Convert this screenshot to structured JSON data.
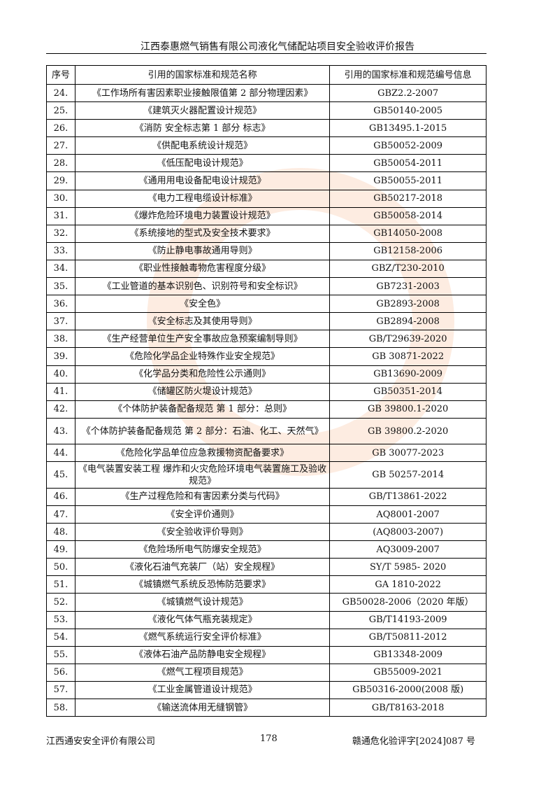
{
  "header": {
    "title": "江西泰惠燃气销售有限公司液化气储配站项目安全验收评价报告"
  },
  "watermark": {
    "text": "江西通安安全评价有限公司",
    "color": "#f5965a"
  },
  "table": {
    "columns": [
      "序号",
      "引用的国家标准和规范名称",
      "引用的国家标准和规范编号信息"
    ],
    "rows": [
      {
        "no": "24.",
        "name": "《工作场所有害因素职业接触限值第 2 部分物理因素》",
        "code": "GBZ2.2-2007"
      },
      {
        "no": "25.",
        "name": "《建筑灭火器配置设计规范》",
        "code": "GB50140-2005"
      },
      {
        "no": "26.",
        "name": "《消防 安全标志第 1 部分  标志》",
        "code": "GB13495.1-2015"
      },
      {
        "no": "27.",
        "name": "《供配电系统设计规范》",
        "code": "GB50052-2009"
      },
      {
        "no": "28.",
        "name": "《低压配电设计规范》",
        "code": "GB50054-2011"
      },
      {
        "no": "29.",
        "name": "《通用用电设备配电设计规范》",
        "code": "GB50055-2011"
      },
      {
        "no": "30.",
        "name": "《电力工程电缆设计标准》",
        "code": "GB50217-2018"
      },
      {
        "no": "31.",
        "name": "《爆炸危险环境电力装置设计规范》",
        "code": "GB50058-2014"
      },
      {
        "no": "32.",
        "name": "《系统接地的型式及安全技术要求》",
        "code": "GB14050-2008"
      },
      {
        "no": "33.",
        "name": "《防止静电事故通用导则》",
        "code": "GB12158-2006"
      },
      {
        "no": "34.",
        "name": "《职业性接触毒物危害程度分级》",
        "code": "GBZ/T230-2010"
      },
      {
        "no": "35.",
        "name": "《工业管道的基本识别色、识别符号和安全标识》",
        "code": "GB7231-2003"
      },
      {
        "no": "36.",
        "name": "《安全色》",
        "code": "GB2893-2008"
      },
      {
        "no": "37.",
        "name": "《安全标志及其使用导则》",
        "code": "GB2894-2008"
      },
      {
        "no": "38.",
        "name": "《生产经营单位生产安全事故应急预案编制导则》",
        "code": "GB/T29639-2020"
      },
      {
        "no": "39.",
        "name": "《危险化学品企业特殊作业安全规范》",
        "code": "GB 30871-2022"
      },
      {
        "no": "40.",
        "name": "《化学品分类和危险性公示通则》",
        "code": "GB13690-2009"
      },
      {
        "no": "41.",
        "name": "《储罐区防火堤设计规范》",
        "code": "GB50351-2014"
      },
      {
        "no": "42.",
        "name": "《个体防护装备配备规范  第 1 部分：总则》",
        "code": "GB 39800.1-2020"
      },
      {
        "no": "43.",
        "name": "《个体防护装备配备规范  第 2 部分：石油、化工、天然气》",
        "code": "GB 39800.2-2020",
        "tall": true
      },
      {
        "no": "44.",
        "name": "《危险化学品单位应急救援物资配备要求》",
        "code": "GB 30077-2023"
      },
      {
        "no": "45.",
        "name": "《电气装置安装工程 爆炸和火灾危险环境电气装置施工及验收规范》",
        "code": "GB 50257-2014",
        "tall": true
      },
      {
        "no": "46.",
        "name": "《生产过程危险和有害因素分类与代码》",
        "code": "GB/T13861-2022"
      },
      {
        "no": "47.",
        "name": "《安全评价通则》",
        "code": "AQ8001-2007"
      },
      {
        "no": "48.",
        "name": "《安全验收评价导则》",
        "code": "(AQ8003-2007)"
      },
      {
        "no": "49.",
        "name": "《危险场所电气防爆安全规范》",
        "code": "AQ3009-2007"
      },
      {
        "no": "50.",
        "name": "《液化石油气充装厂（站）安全规程》",
        "code": "SY/T 5985- 2020"
      },
      {
        "no": "51.",
        "name": "《城镇燃气系统反恐怖防范要求》",
        "code": "GA 1810-2022"
      },
      {
        "no": "52.",
        "name": "《城镇燃气设计规范》",
        "code": "GB50028-2006（2020 年版）"
      },
      {
        "no": "53.",
        "name": "《液化气体气瓶充装规定》",
        "code": "GB/T14193-2009"
      },
      {
        "no": "54.",
        "name": "《燃气系统运行安全评价标准》",
        "code": "GB/T50811-2012"
      },
      {
        "no": "55.",
        "name": "《液体石油产品防静电安全规程》",
        "code": "GB13348-2009"
      },
      {
        "no": "56.",
        "name": "《燃气工程项目规范》",
        "code": "GB55009-2021"
      },
      {
        "no": "57.",
        "name": "《工业金属管道设计规范》",
        "code": "GB50316-2000(2008 版)"
      },
      {
        "no": "58.",
        "name": "《输送流体用无缝钢管》",
        "code": "GB/T8163-2018"
      }
    ]
  },
  "footer": {
    "company": "江西通安安全评价有限公司",
    "page": "178",
    "doc_no": "赣通危化验评字[2024]087 号"
  }
}
